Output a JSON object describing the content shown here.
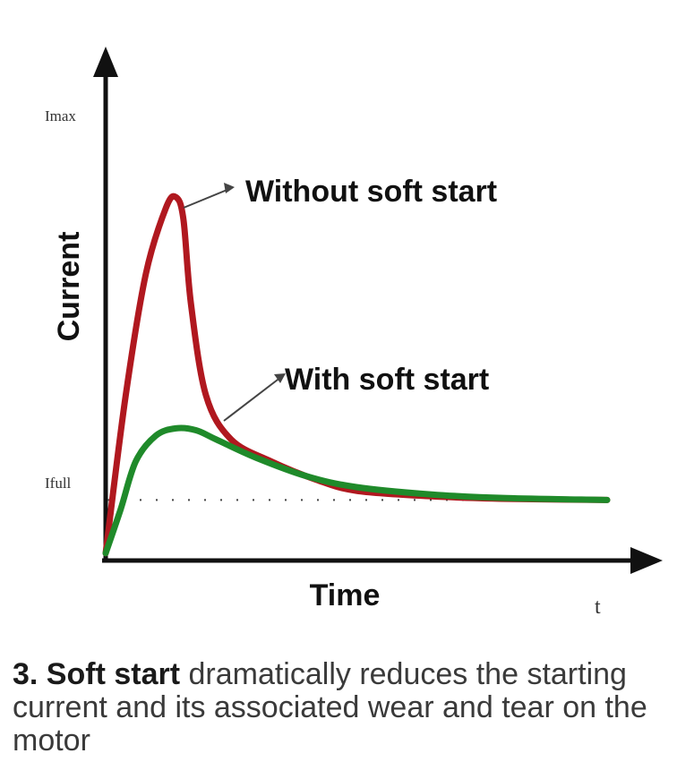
{
  "chart_data": {
    "type": "line",
    "xlabel": "Time",
    "ylabel": "Current",
    "x_tick_labels": [
      "t"
    ],
    "y_tick_labels": [
      "Imax",
      "Ifull"
    ],
    "reference_line": {
      "label": "Ifull",
      "style": "dotted",
      "level": 0.165
    },
    "grid": false,
    "series": [
      {
        "name": "Without soft start",
        "color": "#b0181f",
        "x": [
          0,
          0.04,
          0.08,
          0.12,
          0.14,
          0.155,
          0.17,
          0.2,
          0.25,
          0.33,
          0.42,
          0.5,
          0.65,
          0.8,
          1.0
        ],
        "y": [
          0.02,
          0.45,
          0.78,
          0.96,
          0.99,
          0.93,
          0.7,
          0.45,
          0.33,
          0.27,
          0.22,
          0.19,
          0.175,
          0.168,
          0.165
        ]
      },
      {
        "name": "With soft start",
        "color": "#1f8a2a",
        "x": [
          0,
          0.03,
          0.06,
          0.1,
          0.14,
          0.18,
          0.22,
          0.3,
          0.4,
          0.5,
          0.65,
          0.8,
          1.0
        ],
        "y": [
          0.02,
          0.14,
          0.27,
          0.34,
          0.36,
          0.355,
          0.33,
          0.28,
          0.23,
          0.2,
          0.18,
          0.17,
          0.165
        ]
      }
    ],
    "annotations": [
      "Without soft start",
      "With soft start"
    ],
    "xlim": [
      0,
      1
    ],
    "ylim": [
      0,
      1
    ]
  },
  "caption": {
    "bold": "3. Soft start",
    "rest": " dramatically reduces the starting current and its associated wear and tear on the motor"
  },
  "colors": {
    "axis": "#111111",
    "without": "#b0181f",
    "with": "#1f8a2a"
  }
}
